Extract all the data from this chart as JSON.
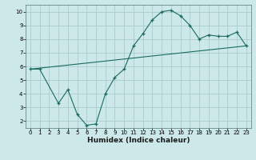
{
  "xlabel": "Humidex (Indice chaleur)",
  "bg_color": "#cce8e8",
  "grid_color": "#aacccc",
  "line_color": "#1a6b5e",
  "xlim": [
    -0.5,
    23.5
  ],
  "ylim": [
    1.5,
    10.5
  ],
  "xticks": [
    0,
    1,
    2,
    3,
    4,
    5,
    6,
    7,
    8,
    9,
    10,
    11,
    12,
    13,
    14,
    15,
    16,
    17,
    18,
    19,
    20,
    21,
    22,
    23
  ],
  "yticks": [
    2,
    3,
    4,
    5,
    6,
    7,
    8,
    9,
    10
  ],
  "curve_x": [
    0,
    1,
    3,
    4,
    5,
    6,
    7,
    8,
    9,
    10,
    11,
    12,
    13,
    14,
    15,
    16,
    17,
    18,
    19,
    20,
    21,
    22,
    23
  ],
  "curve_y": [
    5.8,
    5.8,
    3.3,
    4.3,
    2.5,
    1.7,
    1.8,
    4.0,
    5.2,
    5.8,
    7.5,
    8.4,
    9.4,
    10.0,
    10.1,
    9.7,
    9.0,
    8.0,
    8.3,
    8.2,
    8.2,
    8.5,
    7.5
  ],
  "line2_x": [
    0,
    23
  ],
  "line2_y": [
    5.8,
    7.5
  ],
  "font_size_ticks": 5,
  "font_size_xlabel": 6.5
}
